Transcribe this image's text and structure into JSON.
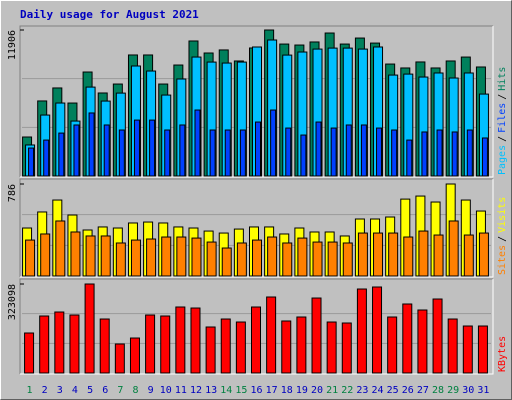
{
  "chart_data": [
    {
      "type": "bar",
      "title": "Daily usage for August 2021",
      "ylim": [
        0,
        11906
      ],
      "yticks": [
        11906
      ],
      "legend_separator": "/",
      "series": [
        {
          "name": "Hits",
          "color": "#00805c",
          "values": [
            3180,
            6120,
            7180,
            5950,
            8480,
            6770,
            7500,
            9870,
            9870,
            7500,
            9050,
            11010,
            10030,
            10280,
            9380,
            10440,
            11906,
            10760,
            10680,
            10930,
            11660,
            10760,
            11250,
            10840,
            9130,
            8810,
            9300,
            8810,
            9380,
            9700,
            8890
          ]
        },
        {
          "name": "Pages",
          "color": "#00c0ff",
          "values": [
            2530,
            4970,
            5950,
            4480,
            7250,
            6110,
            6760,
            8970,
            8560,
            6600,
            7910,
            9700,
            9290,
            9210,
            9290,
            10520,
            11090,
            9860,
            10110,
            10350,
            10430,
            10430,
            10350,
            10520,
            8230,
            8310,
            8070,
            8400,
            7990,
            8400,
            6680
          ]
        },
        {
          "name": "Files",
          "color": "#0040ff",
          "values": [
            2280,
            2930,
            3500,
            4160,
            5140,
            4160,
            3750,
            4560,
            4560,
            3750,
            4160,
            5380,
            3750,
            3750,
            3750,
            4400,
            5380,
            3910,
            3340,
            4400,
            3910,
            4160,
            4160,
            3910,
            3750,
            2930,
            3590,
            3750,
            3590,
            3750,
            3100
          ]
        }
      ]
    },
    {
      "type": "bar",
      "ylim": [
        0,
        786
      ],
      "yticks": [
        786
      ],
      "legend_separator": "/",
      "series": [
        {
          "name": "Visits",
          "color": "#ffff00",
          "values": [
            410,
            547,
            649,
            521,
            393,
            419,
            410,
            453,
            461,
            453,
            419,
            410,
            384,
            367,
            401,
            419,
            419,
            359,
            410,
            376,
            376,
            342,
            487,
            487,
            504,
            657,
            683,
            632,
            786,
            649,
            555
          ]
        },
        {
          "name": "Sites",
          "color": "#ff8000",
          "values": [
            307,
            359,
            470,
            376,
            342,
            342,
            282,
            307,
            316,
            333,
            333,
            324,
            290,
            239,
            282,
            307,
            333,
            282,
            324,
            290,
            290,
            282,
            367,
            367,
            367,
            333,
            384,
            350,
            470,
            350,
            367
          ]
        }
      ]
    },
    {
      "type": "bar",
      "ylim": [
        0,
        323098
      ],
      "yticks": [
        323098
      ],
      "categories": [
        "1",
        "2",
        "3",
        "4",
        "5",
        "6",
        "7",
        "8",
        "9",
        "10",
        "11",
        "12",
        "13",
        "14",
        "15",
        "16",
        "17",
        "18",
        "19",
        "20",
        "21",
        "22",
        "23",
        "24",
        "25",
        "26",
        "27",
        "28",
        "29",
        "30",
        "31"
      ],
      "category_colors": [
        "#008040",
        "#0000c0",
        "#0000c0",
        "#0000c0",
        "#0000c0",
        "#0000c0",
        "#008040",
        "#008040",
        "#0000c0",
        "#0000c0",
        "#0000c0",
        "#0000c0",
        "#0000c0",
        "#008040",
        "#008040",
        "#0000c0",
        "#0000c0",
        "#0000c0",
        "#0000c0",
        "#0000c0",
        "#008040",
        "#008040",
        "#0000c0",
        "#0000c0",
        "#0000c0",
        "#0000c0",
        "#0000c0",
        "#008040",
        "#008040",
        "#0000c0",
        "#0000c0"
      ],
      "series": [
        {
          "name": "KBytes",
          "color": "#ff0000",
          "values": [
            145200,
            206900,
            221400,
            210500,
            323098,
            196000,
            105300,
            127000,
            210500,
            206900,
            239600,
            235900,
            167000,
            196000,
            185100,
            239600,
            275900,
            188800,
            203300,
            272200,
            185100,
            181500,
            304900,
            312200,
            203300,
            250500,
            228700,
            268600,
            196000,
            170600,
            170600
          ]
        }
      ]
    }
  ]
}
